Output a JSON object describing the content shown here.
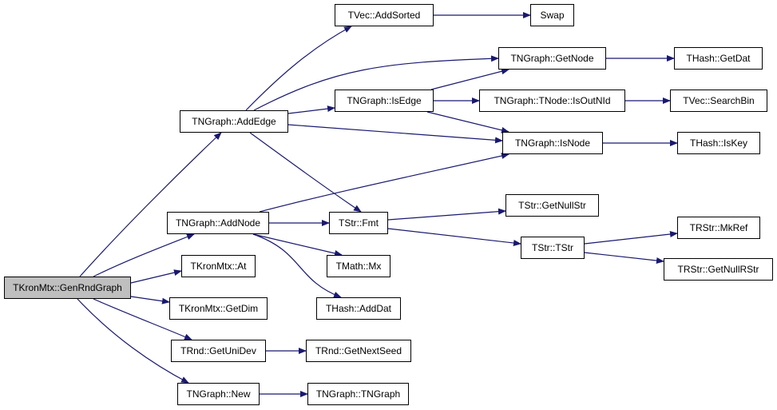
{
  "colors": {
    "edge": "#191970",
    "root_fill": "#bfbfbf",
    "node_fill": "#ffffff",
    "border": "#000000"
  },
  "root": "GenRndGraph",
  "nodes": {
    "GenRndGraph": "TKronMtx::GenRndGraph",
    "AddEdge": "TNGraph::AddEdge",
    "AddNode": "TNGraph::AddNode",
    "At": "TKronMtx::At",
    "GetDim": "TKronMtx::GetDim",
    "GetUniDev": "TRnd::GetUniDev",
    "New": "TNGraph::New",
    "AddSorted": "TVec::AddSorted",
    "Swap": "Swap",
    "GetNode": "TNGraph::GetNode",
    "GetDat": "THash::GetDat",
    "IsEdge": "TNGraph::IsEdge",
    "IsOutNId": "TNGraph::TNode::IsOutNId",
    "SearchBin": "TVec::SearchBin",
    "IsNode": "TNGraph::IsNode",
    "IsKey": "THash::IsKey",
    "Fmt": "TStr::Fmt",
    "Mx": "TMath::Mx",
    "AddDat": "THash::AddDat",
    "GetNextSeed": "TRnd::GetNextSeed",
    "TNGraphCtor": "TNGraph::TNGraph",
    "GetNullStr": "TStr::GetNullStr",
    "TStrCtor": "TStr::TStr",
    "MkRef": "TRStr::MkRef",
    "GetNullRStr": "TRStr::GetNullRStr"
  },
  "edges": [
    [
      "GenRndGraph",
      "AddEdge"
    ],
    [
      "GenRndGraph",
      "AddNode"
    ],
    [
      "GenRndGraph",
      "At"
    ],
    [
      "GenRndGraph",
      "GetDim"
    ],
    [
      "GenRndGraph",
      "GetUniDev"
    ],
    [
      "GenRndGraph",
      "New"
    ],
    [
      "AddEdge",
      "AddSorted"
    ],
    [
      "AddEdge",
      "GetNode"
    ],
    [
      "AddEdge",
      "IsEdge"
    ],
    [
      "AddEdge",
      "IsNode"
    ],
    [
      "AddEdge",
      "Fmt"
    ],
    [
      "AddNode",
      "IsNode"
    ],
    [
      "AddNode",
      "Fmt"
    ],
    [
      "AddNode",
      "Mx"
    ],
    [
      "AddNode",
      "AddDat"
    ],
    [
      "IsEdge",
      "GetNode"
    ],
    [
      "IsEdge",
      "IsOutNId"
    ],
    [
      "IsEdge",
      "IsNode"
    ],
    [
      "AddSorted",
      "Swap"
    ],
    [
      "GetNode",
      "GetDat"
    ],
    [
      "IsOutNId",
      "SearchBin"
    ],
    [
      "IsNode",
      "IsKey"
    ],
    [
      "Fmt",
      "GetNullStr"
    ],
    [
      "Fmt",
      "TStrCtor"
    ],
    [
      "TStrCtor",
      "MkRef"
    ],
    [
      "TStrCtor",
      "GetNullRStr"
    ],
    [
      "GetUniDev",
      "GetNextSeed"
    ],
    [
      "New",
      "TNGraphCtor"
    ]
  ]
}
